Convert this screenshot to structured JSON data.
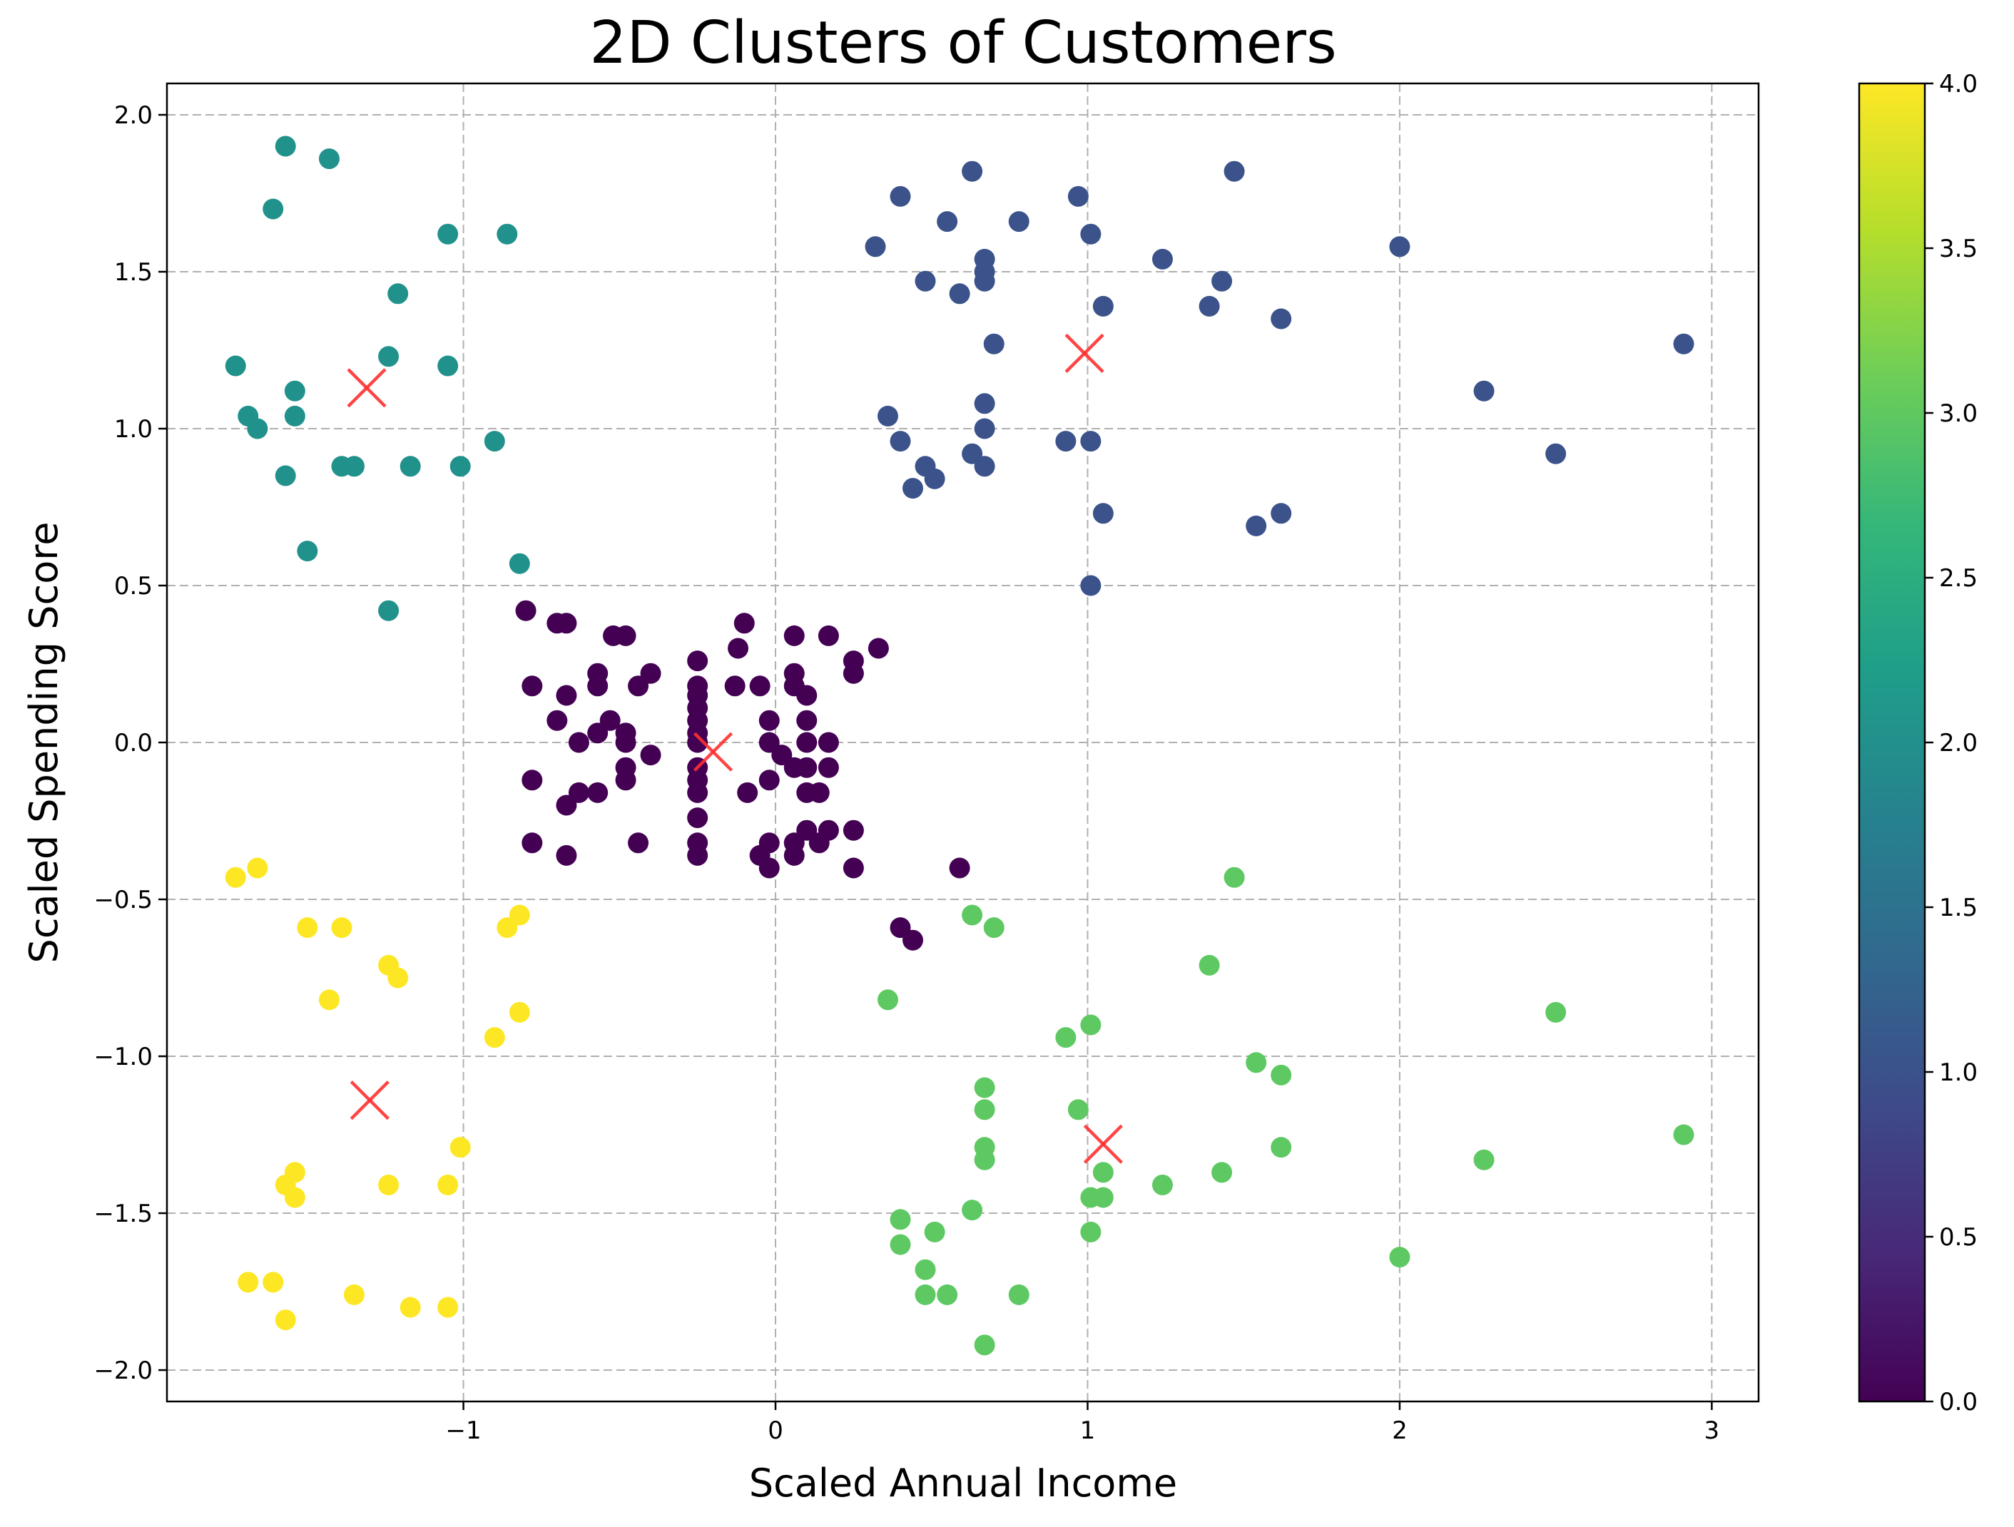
{
  "chart_data": {
    "type": "scatter",
    "title": "2D Clusters of Customers",
    "xlabel": "Scaled Annual Income",
    "ylabel": "Scaled Spending Score",
    "xlim": [
      -1.95,
      3.15
    ],
    "ylim": [
      -2.1,
      2.1
    ],
    "xticks": [
      -1,
      0,
      1,
      2,
      3
    ],
    "xtick_labels": [
      "−1",
      "0",
      "1",
      "2",
      "3"
    ],
    "yticks": [
      -2.0,
      -1.5,
      -1.0,
      -0.5,
      0.0,
      0.5,
      1.0,
      1.5,
      2.0
    ],
    "ytick_labels": [
      "−2.0",
      "−1.5",
      "−1.0",
      "−0.5",
      "0.0",
      "0.5",
      "1.0",
      "1.5",
      "2.0"
    ],
    "grid": true,
    "colorbar": {
      "colormap": "viridis",
      "range": [
        0.0,
        4.0
      ],
      "ticks": [
        0.0,
        0.5,
        1.0,
        1.5,
        2.0,
        2.5,
        3.0,
        3.5,
        4.0
      ],
      "tick_labels": [
        "0.0",
        "0.5",
        "1.0",
        "1.5",
        "2.0",
        "2.5",
        "3.0",
        "3.5",
        "4.0"
      ],
      "stops": [
        "#440154",
        "#482878",
        "#3e4a89",
        "#31688e",
        "#26828e",
        "#1f9e89",
        "#35b779",
        "#6ece58",
        "#b5de2b",
        "#fde725"
      ]
    },
    "cluster_colors": [
      "#440154",
      "#3b528b",
      "#21918c",
      "#5ec962",
      "#fde725"
    ],
    "centroid_color": "#ff3030",
    "series": [
      {
        "cluster": 0,
        "points": [
          [
            -0.8,
            0.42
          ],
          [
            -0.7,
            0.38
          ],
          [
            -0.67,
            0.38
          ],
          [
            -0.52,
            0.34
          ],
          [
            -0.48,
            0.34
          ],
          [
            -0.25,
            0.26
          ],
          [
            -0.1,
            0.38
          ],
          [
            -0.12,
            0.3
          ],
          [
            0.06,
            0.34
          ],
          [
            0.17,
            0.34
          ],
          [
            0.33,
            0.3
          ],
          [
            0.25,
            0.26
          ],
          [
            0.25,
            0.22
          ],
          [
            -0.78,
            0.18
          ],
          [
            -0.67,
            0.15
          ],
          [
            -0.57,
            0.22
          ],
          [
            -0.57,
            0.18
          ],
          [
            -0.44,
            0.18
          ],
          [
            -0.4,
            0.22
          ],
          [
            -0.25,
            0.18
          ],
          [
            -0.25,
            0.15
          ],
          [
            -0.25,
            0.11
          ],
          [
            -0.13,
            0.18
          ],
          [
            -0.05,
            0.18
          ],
          [
            0.06,
            0.22
          ],
          [
            0.06,
            0.18
          ],
          [
            0.1,
            0.15
          ],
          [
            -0.7,
            0.07
          ],
          [
            -0.53,
            0.07
          ],
          [
            -0.57,
            0.03
          ],
          [
            -0.48,
            0.03
          ],
          [
            -0.25,
            0.07
          ],
          [
            -0.25,
            0.03
          ],
          [
            -0.02,
            0.07
          ],
          [
            0.1,
            0.07
          ],
          [
            -0.63,
            0.0
          ],
          [
            -0.48,
            0.0
          ],
          [
            -0.4,
            -0.04
          ],
          [
            -0.25,
            0.0
          ],
          [
            -0.02,
            0.0
          ],
          [
            0.02,
            -0.04
          ],
          [
            0.1,
            0.0
          ],
          [
            0.17,
            0.0
          ],
          [
            -0.78,
            -0.12
          ],
          [
            -0.63,
            -0.16
          ],
          [
            -0.67,
            -0.2
          ],
          [
            -0.57,
            -0.16
          ],
          [
            -0.48,
            -0.12
          ],
          [
            -0.48,
            -0.08
          ],
          [
            -0.25,
            -0.08
          ],
          [
            -0.25,
            -0.12
          ],
          [
            -0.25,
            -0.16
          ],
          [
            -0.02,
            -0.12
          ],
          [
            0.06,
            -0.08
          ],
          [
            0.1,
            -0.08
          ],
          [
            0.1,
            -0.16
          ],
          [
            0.17,
            -0.08
          ],
          [
            0.14,
            -0.16
          ],
          [
            -0.09,
            -0.16
          ],
          [
            -0.78,
            -0.32
          ],
          [
            -0.67,
            -0.36
          ],
          [
            -0.44,
            -0.32
          ],
          [
            -0.25,
            -0.24
          ],
          [
            -0.25,
            -0.32
          ],
          [
            -0.25,
            -0.36
          ],
          [
            -0.05,
            -0.36
          ],
          [
            -0.02,
            -0.32
          ],
          [
            -0.02,
            -0.4
          ],
          [
            0.06,
            -0.32
          ],
          [
            0.06,
            -0.36
          ],
          [
            0.1,
            -0.28
          ],
          [
            0.14,
            -0.32
          ],
          [
            0.17,
            -0.28
          ],
          [
            0.25,
            -0.28
          ],
          [
            0.25,
            -0.4
          ],
          [
            0.59,
            -0.4
          ],
          [
            0.4,
            -0.59
          ],
          [
            0.44,
            -0.63
          ]
        ]
      },
      {
        "cluster": 1,
        "points": [
          [
            0.63,
            1.82
          ],
          [
            1.47,
            1.82
          ],
          [
            0.4,
            1.74
          ],
          [
            0.97,
            1.74
          ],
          [
            0.55,
            1.66
          ],
          [
            0.78,
            1.66
          ],
          [
            1.01,
            1.62
          ],
          [
            0.32,
            1.58
          ],
          [
            2.0,
            1.58
          ],
          [
            0.67,
            1.54
          ],
          [
            0.67,
            1.5
          ],
          [
            1.24,
            1.54
          ],
          [
            0.48,
            1.47
          ],
          [
            0.67,
            1.47
          ],
          [
            1.43,
            1.47
          ],
          [
            0.59,
            1.43
          ],
          [
            1.05,
            1.39
          ],
          [
            1.39,
            1.39
          ],
          [
            1.62,
            1.35
          ],
          [
            0.7,
            1.27
          ],
          [
            2.91,
            1.27
          ],
          [
            2.27,
            1.12
          ],
          [
            0.67,
            1.08
          ],
          [
            0.36,
            1.04
          ],
          [
            0.67,
            1.0
          ],
          [
            0.4,
            0.96
          ],
          [
            0.93,
            0.96
          ],
          [
            1.01,
            0.96
          ],
          [
            0.63,
            0.92
          ],
          [
            2.5,
            0.92
          ],
          [
            0.48,
            0.88
          ],
          [
            0.67,
            0.88
          ],
          [
            0.51,
            0.84
          ],
          [
            0.44,
            0.81
          ],
          [
            1.05,
            0.73
          ],
          [
            1.62,
            0.73
          ],
          [
            1.54,
            0.69
          ],
          [
            1.01,
            0.5
          ]
        ]
      },
      {
        "cluster": 2,
        "points": [
          [
            -1.57,
            1.9
          ],
          [
            -1.43,
            1.86
          ],
          [
            -1.61,
            1.7
          ],
          [
            -1.05,
            1.62
          ],
          [
            -0.86,
            1.62
          ],
          [
            -1.21,
            1.43
          ],
          [
            -1.24,
            1.23
          ],
          [
            -1.73,
            1.2
          ],
          [
            -1.05,
            1.2
          ],
          [
            -1.54,
            1.12
          ],
          [
            -1.69,
            1.04
          ],
          [
            -1.54,
            1.04
          ],
          [
            -1.66,
            1.0
          ],
          [
            -0.9,
            0.96
          ],
          [
            -1.39,
            0.88
          ],
          [
            -1.35,
            0.88
          ],
          [
            -1.17,
            0.88
          ],
          [
            -1.01,
            0.88
          ],
          [
            -1.57,
            0.85
          ],
          [
            -1.5,
            0.61
          ],
          [
            -0.82,
            0.57
          ],
          [
            -1.24,
            0.42
          ]
        ]
      },
      {
        "cluster": 3,
        "points": [
          [
            1.47,
            -0.43
          ],
          [
            0.63,
            -0.55
          ],
          [
            0.7,
            -0.59
          ],
          [
            1.39,
            -0.71
          ],
          [
            0.36,
            -0.82
          ],
          [
            2.5,
            -0.86
          ],
          [
            1.01,
            -0.9
          ],
          [
            0.93,
            -0.94
          ],
          [
            1.54,
            -1.02
          ],
          [
            1.62,
            -1.06
          ],
          [
            0.67,
            -1.1
          ],
          [
            0.67,
            -1.17
          ],
          [
            0.97,
            -1.17
          ],
          [
            2.91,
            -1.25
          ],
          [
            0.67,
            -1.29
          ],
          [
            1.62,
            -1.29
          ],
          [
            0.67,
            -1.33
          ],
          [
            2.27,
            -1.33
          ],
          [
            1.05,
            -1.37
          ],
          [
            1.43,
            -1.37
          ],
          [
            1.24,
            -1.41
          ],
          [
            1.01,
            -1.45
          ],
          [
            1.05,
            -1.45
          ],
          [
            0.63,
            -1.49
          ],
          [
            0.4,
            -1.52
          ],
          [
            0.51,
            -1.56
          ],
          [
            1.01,
            -1.56
          ],
          [
            0.4,
            -1.6
          ],
          [
            2.0,
            -1.64
          ],
          [
            0.48,
            -1.68
          ],
          [
            0.48,
            -1.76
          ],
          [
            0.55,
            -1.76
          ],
          [
            0.78,
            -1.76
          ],
          [
            0.67,
            -1.92
          ]
        ]
      },
      {
        "cluster": 4,
        "points": [
          [
            -1.73,
            -0.43
          ],
          [
            -1.66,
            -0.4
          ],
          [
            -1.5,
            -0.59
          ],
          [
            -1.39,
            -0.59
          ],
          [
            -0.86,
            -0.59
          ],
          [
            -0.82,
            -0.55
          ],
          [
            -1.24,
            -0.71
          ],
          [
            -1.21,
            -0.75
          ],
          [
            -1.43,
            -0.82
          ],
          [
            -0.82,
            -0.86
          ],
          [
            -0.9,
            -0.94
          ],
          [
            -1.01,
            -1.29
          ],
          [
            -1.54,
            -1.37
          ],
          [
            -1.57,
            -1.41
          ],
          [
            -1.24,
            -1.41
          ],
          [
            -1.05,
            -1.41
          ],
          [
            -1.54,
            -1.45
          ],
          [
            -1.69,
            -1.72
          ],
          [
            -1.61,
            -1.72
          ],
          [
            -1.35,
            -1.76
          ],
          [
            -1.17,
            -1.8
          ],
          [
            -1.05,
            -1.8
          ],
          [
            -1.57,
            -1.84
          ]
        ]
      }
    ],
    "centroids": [
      [
        -0.2,
        -0.03
      ],
      [
        0.99,
        1.24
      ],
      [
        -1.31,
        1.13
      ],
      [
        1.05,
        -1.28
      ],
      [
        -1.3,
        -1.14
      ]
    ]
  }
}
